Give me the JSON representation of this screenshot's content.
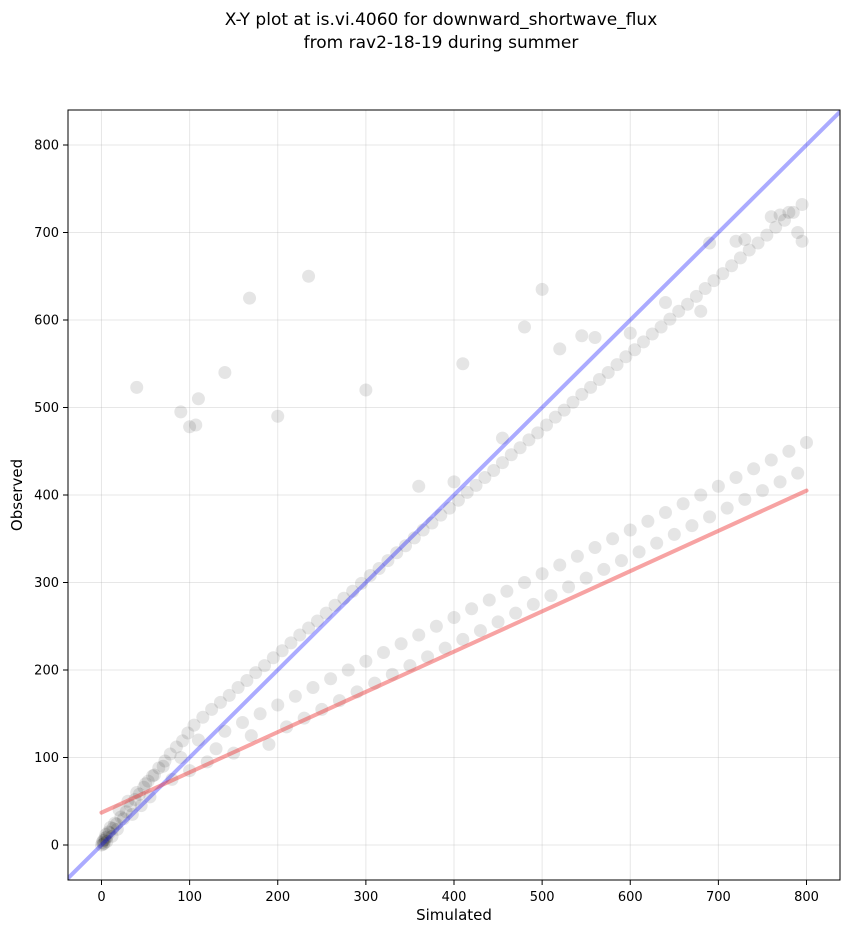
{
  "chart_data": {
    "type": "scatter",
    "title": [
      "X-Y plot at is.vi.4060 for downward_shortwave_flux",
      "from rav2-18-19 during summer"
    ],
    "xlabel": "Simulated",
    "ylabel": "Observed",
    "xlim": [
      -38,
      838
    ],
    "ylim": [
      -40,
      840
    ],
    "xticks": [
      0,
      100,
      200,
      300,
      400,
      500,
      600,
      700,
      800
    ],
    "yticks": [
      0,
      100,
      200,
      300,
      400,
      500,
      600,
      700,
      800
    ],
    "grid": true,
    "point_color": "#000000",
    "one_to_one_line": {
      "color": "#0000ff",
      "x": [
        -40,
        840
      ],
      "y": [
        -40,
        840
      ]
    },
    "regression_line": {
      "color": "#ee3333",
      "x": [
        0,
        800
      ],
      "y": [
        37,
        405
      ]
    },
    "points": {
      "x": [
        0,
        1,
        2,
        3,
        4,
        5,
        6,
        8,
        10,
        12,
        15,
        18,
        20,
        25,
        30,
        35,
        40,
        45,
        50,
        55,
        60,
        70,
        80,
        90,
        100,
        110,
        120,
        130,
        140,
        150,
        160,
        170,
        180,
        190,
        200,
        210,
        220,
        230,
        240,
        250,
        260,
        270,
        280,
        290,
        300,
        310,
        320,
        330,
        340,
        350,
        360,
        370,
        380,
        390,
        400,
        410,
        420,
        430,
        440,
        450,
        460,
        470,
        480,
        490,
        500,
        510,
        520,
        530,
        540,
        550,
        560,
        570,
        580,
        590,
        600,
        610,
        620,
        630,
        640,
        650,
        660,
        670,
        680,
        690,
        700,
        710,
        720,
        730,
        740,
        750,
        760,
        770,
        780,
        790,
        800,
        2,
        4,
        6,
        9,
        13,
        17,
        22,
        28,
        33,
        38,
        43,
        48,
        53,
        58,
        65,
        72,
        78,
        85,
        92,
        98,
        105,
        115,
        125,
        135,
        145,
        155,
        165,
        175,
        185,
        195,
        205,
        215,
        225,
        235,
        245,
        255,
        265,
        275,
        285,
        295,
        305,
        315,
        325,
        335,
        345,
        355,
        365,
        375,
        385,
        395,
        405,
        415,
        425,
        435,
        445,
        455,
        465,
        475,
        485,
        495,
        505,
        515,
        525,
        535,
        545,
        555,
        565,
        575,
        585,
        595,
        605,
        615,
        625,
        635,
        645,
        655,
        665,
        675,
        685,
        695,
        705,
        715,
        725,
        735,
        745,
        755,
        765,
        775,
        785,
        795,
        40,
        107,
        110,
        140,
        168,
        235,
        90,
        100,
        200,
        300,
        410,
        480,
        500,
        520,
        760,
        770,
        780,
        790,
        795,
        720,
        730,
        690,
        640,
        680,
        600,
        560,
        545,
        455,
        360,
        400
      ],
      "y": [
        0,
        3,
        5,
        2,
        8,
        12,
        4,
        15,
        20,
        10,
        25,
        18,
        40,
        30,
        50,
        35,
        60,
        45,
        70,
        55,
        80,
        90,
        75,
        100,
        85,
        120,
        95,
        110,
        130,
        105,
        140,
        125,
        150,
        115,
        160,
        135,
        170,
        145,
        180,
        155,
        190,
        165,
        200,
        175,
        210,
        185,
        220,
        195,
        230,
        205,
        240,
        215,
        250,
        225,
        260,
        235,
        270,
        245,
        280,
        255,
        290,
        265,
        300,
        275,
        310,
        285,
        320,
        295,
        330,
        305,
        340,
        315,
        350,
        325,
        360,
        335,
        370,
        345,
        380,
        355,
        390,
        365,
        400,
        375,
        410,
        385,
        420,
        395,
        430,
        405,
        440,
        415,
        450,
        425,
        460,
        1,
        6,
        9,
        14,
        19,
        24,
        32,
        38,
        45,
        52,
        58,
        66,
        73,
        79,
        88,
        96,
        104,
        112,
        119,
        128,
        137,
        146,
        155,
        163,
        171,
        180,
        188,
        197,
        205,
        214,
        222,
        231,
        240,
        248,
        256,
        265,
        274,
        282,
        290,
        299,
        308,
        316,
        325,
        334,
        342,
        351,
        360,
        368,
        377,
        385,
        394,
        403,
        411,
        420,
        428,
        437,
        446,
        454,
        463,
        471,
        480,
        489,
        497,
        506,
        515,
        523,
        532,
        540,
        549,
        558,
        566,
        575,
        584,
        592,
        601,
        610,
        618,
        627,
        636,
        645,
        653,
        662,
        671,
        680,
        688,
        697,
        706,
        714,
        723,
        732,
        523,
        480,
        510,
        540,
        625,
        650,
        495,
        478,
        490,
        520,
        550,
        592,
        635,
        567,
        718,
        720,
        723,
        700,
        690,
        690,
        692,
        688,
        620,
        610,
        585,
        580,
        582,
        465,
        410,
        415
      ]
    }
  }
}
